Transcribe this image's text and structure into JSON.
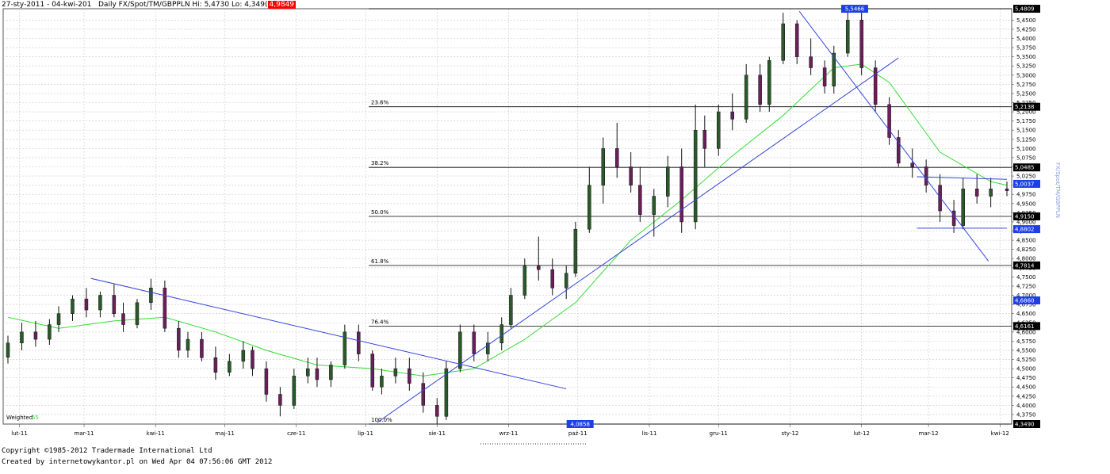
{
  "header": {
    "range": "27-sty-2011 - 04-kwi-201",
    "instrument": "Daily FX/Spot/TM/GBPPLN",
    "hi": "Hi: 5,4730",
    "lo": "Lo: 4,349(",
    "close_box": "4,9849"
  },
  "footer": {
    "copyright": "Copyright ©1985-2012 Tradermade International Ltd",
    "created": "Created by internetowykantor.pl    on Wed Apr 04 07:56:06 GMT 2012"
  },
  "side_title": "FX/Spot/TM/GBPPLN",
  "indicator_label": "Weighted",
  "indicator_period": "55",
  "chart_data": {
    "type": "candlestick",
    "ylim": [
      4.349,
      5.481
    ],
    "y_ticks": [
      {
        "value": 4.375,
        "label": "4,3750"
      },
      {
        "value": 4.4,
        "label": "4,4000"
      },
      {
        "value": 4.425,
        "label": "4,4250"
      },
      {
        "value": 4.45,
        "label": "4,4500"
      },
      {
        "value": 4.475,
        "label": "4,4750"
      },
      {
        "value": 4.5,
        "label": "4,5000"
      },
      {
        "value": 4.525,
        "label": "4,5250"
      },
      {
        "value": 4.55,
        "label": "4,5500"
      },
      {
        "value": 4.575,
        "label": "4,5750"
      },
      {
        "value": 4.6,
        "label": "4,6000"
      },
      {
        "value": 4.625,
        "label": "4,6250"
      },
      {
        "value": 4.65,
        "label": "4,6500"
      },
      {
        "value": 4.675,
        "label": "4,6750"
      },
      {
        "value": 4.7,
        "label": "4,7000"
      },
      {
        "value": 4.725,
        "label": "4,7250"
      },
      {
        "value": 4.75,
        "label": "4,7500"
      },
      {
        "value": 4.775,
        "label": "4,7750"
      },
      {
        "value": 4.8,
        "label": "4,8000"
      },
      {
        "value": 4.825,
        "label": "4,8250"
      },
      {
        "value": 4.85,
        "label": "4,8500"
      },
      {
        "value": 4.875,
        "label": "4,8750"
      },
      {
        "value": 4.9,
        "label": "4,9000"
      },
      {
        "value": 4.925,
        "label": "4,9250"
      },
      {
        "value": 4.95,
        "label": "4,9500"
      },
      {
        "value": 4.975,
        "label": "4,9750"
      },
      {
        "value": 5.0,
        "label": "5,0000"
      },
      {
        "value": 5.025,
        "label": "5,0250"
      },
      {
        "value": 5.05,
        "label": "5,0500"
      },
      {
        "value": 5.075,
        "label": "5,0750"
      },
      {
        "value": 5.1,
        "label": "5,1000"
      },
      {
        "value": 5.125,
        "label": "5,1250"
      },
      {
        "value": 5.15,
        "label": "5,1500"
      },
      {
        "value": 5.175,
        "label": "5,1750"
      },
      {
        "value": 5.2,
        "label": "5,2000"
      },
      {
        "value": 5.225,
        "label": "5,2250"
      },
      {
        "value": 5.25,
        "label": "5,2500"
      },
      {
        "value": 5.275,
        "label": "5,2750"
      },
      {
        "value": 5.3,
        "label": "5,3000"
      },
      {
        "value": 5.325,
        "label": "5,3250"
      },
      {
        "value": 5.35,
        "label": "5,3500"
      },
      {
        "value": 5.375,
        "label": "5,3750"
      },
      {
        "value": 5.4,
        "label": "5,4000"
      },
      {
        "value": 5.425,
        "label": "5,4250"
      },
      {
        "value": 5.45,
        "label": "5,4500"
      }
    ],
    "x_labels": [
      "lut-11",
      "mar-11",
      "kwi-11",
      "maj-11",
      "cze-11",
      "lip-11",
      "sie-11",
      "wrz-11",
      "paź-11",
      "lis-11",
      "gru-11",
      "sty-12",
      "lut-12",
      "mar-12",
      "kwi-12"
    ],
    "x_range": [
      "2011-01-27",
      "2012-04-04"
    ],
    "fibonacci": [
      {
        "label": "23.6%",
        "value": 5.2138
      },
      {
        "label": "38.2%",
        "value": 5.0485
      },
      {
        "label": "50.0%",
        "value": 4.915
      },
      {
        "label": "61.8%",
        "value": 4.7814
      },
      {
        "label": "76.4%",
        "value": 4.6161
      },
      {
        "label": "100.0%",
        "value": 4.349
      }
    ],
    "price_tags": [
      {
        "value": 5.4809,
        "label": "5,4809",
        "color": "#000000"
      },
      {
        "value": 5.2138,
        "label": "5,2138",
        "color": "#000000"
      },
      {
        "value": 5.0485,
        "label": "5,0485",
        "color": "#000000"
      },
      {
        "value": 5.0037,
        "label": "5,0037",
        "color": "#1f3fe6"
      },
      {
        "value": 4.915,
        "label": "4,9150",
        "color": "#000000"
      },
      {
        "value": 4.8802,
        "label": "4,8802",
        "color": "#1f3fe6"
      },
      {
        "value": 4.7814,
        "label": "4,7814",
        "color": "#000000"
      },
      {
        "value": 4.686,
        "label": "4,6860",
        "color": "#1f3fe6"
      },
      {
        "value": 4.6161,
        "label": "4,6161",
        "color": "#000000"
      },
      {
        "value": 4.349,
        "label": "4,3490",
        "color": "#000000"
      }
    ],
    "float_tags": [
      {
        "label": "5,5466",
        "value": 5.4809,
        "date": "2012-01-29"
      },
      {
        "label": "4,0858",
        "value": 4.349,
        "date": "2011-10-02"
      }
    ],
    "trendlines": [
      {
        "from": [
          "2011-03-04",
          4.746
        ],
        "to": [
          "2011-09-26",
          4.445
        ]
      },
      {
        "from": [
          "2011-07-06",
          4.353
        ],
        "to": [
          "2012-02-17",
          5.347
        ]
      },
      {
        "from": [
          "2012-01-05",
          5.474
        ],
        "to": [
          "2012-03-27",
          4.793
        ]
      },
      {
        "from": [
          "2012-02-25",
          5.023
        ],
        "to": [
          "2012-04-04",
          5.016
        ]
      },
      {
        "from": [
          "2012-02-25",
          4.883
        ],
        "to": [
          "2012-04-04",
          4.883
        ]
      }
    ],
    "series": [
      {
        "name": "GBPPLN",
        "kind": "ohlc",
        "points": [
          {
            "date": "2011-01-27",
            "o": 4.531,
            "h": 4.59,
            "l": 4.514,
            "c": 4.57
          },
          {
            "date": "2011-02-02",
            "o": 4.57,
            "h": 4.625,
            "l": 4.55,
            "c": 4.6
          },
          {
            "date": "2011-02-08",
            "o": 4.6,
            "h": 4.63,
            "l": 4.56,
            "c": 4.58
          },
          {
            "date": "2011-02-14",
            "o": 4.58,
            "h": 4.635,
            "l": 4.565,
            "c": 4.62
          },
          {
            "date": "2011-02-18",
            "o": 4.62,
            "h": 4.67,
            "l": 4.6,
            "c": 4.65
          },
          {
            "date": "2011-02-24",
            "o": 4.65,
            "h": 4.7,
            "l": 4.63,
            "c": 4.69
          },
          {
            "date": "2011-03-02",
            "o": 4.69,
            "h": 4.72,
            "l": 4.64,
            "c": 4.66
          },
          {
            "date": "2011-03-08",
            "o": 4.66,
            "h": 4.71,
            "l": 4.64,
            "c": 4.7
          },
          {
            "date": "2011-03-14",
            "o": 4.7,
            "h": 4.73,
            "l": 4.64,
            "c": 4.65
          },
          {
            "date": "2011-03-18",
            "o": 4.65,
            "h": 4.68,
            "l": 4.6,
            "c": 4.62
          },
          {
            "date": "2011-03-24",
            "o": 4.62,
            "h": 4.69,
            "l": 4.61,
            "c": 4.68
          },
          {
            "date": "2011-03-30",
            "o": 4.68,
            "h": 4.745,
            "l": 4.66,
            "c": 4.72
          },
          {
            "date": "2011-04-05",
            "o": 4.72,
            "h": 4.74,
            "l": 4.6,
            "c": 4.61
          },
          {
            "date": "2011-04-11",
            "o": 4.61,
            "h": 4.63,
            "l": 4.53,
            "c": 4.55
          },
          {
            "date": "2011-04-15",
            "o": 4.55,
            "h": 4.6,
            "l": 4.53,
            "c": 4.58
          },
          {
            "date": "2011-04-21",
            "o": 4.58,
            "h": 4.6,
            "l": 4.52,
            "c": 4.53
          },
          {
            "date": "2011-04-27",
            "o": 4.53,
            "h": 4.56,
            "l": 4.47,
            "c": 4.49
          },
          {
            "date": "2011-05-03",
            "o": 4.49,
            "h": 4.54,
            "l": 4.48,
            "c": 4.52
          },
          {
            "date": "2011-05-09",
            "o": 4.52,
            "h": 4.575,
            "l": 4.5,
            "c": 4.55
          },
          {
            "date": "2011-05-13",
            "o": 4.55,
            "h": 4.56,
            "l": 4.48,
            "c": 4.5
          },
          {
            "date": "2011-05-19",
            "o": 4.5,
            "h": 4.52,
            "l": 4.41,
            "c": 4.43
          },
          {
            "date": "2011-05-25",
            "o": 4.43,
            "h": 4.45,
            "l": 4.37,
            "c": 4.4
          },
          {
            "date": "2011-05-31",
            "o": 4.4,
            "h": 4.5,
            "l": 4.39,
            "c": 4.48
          },
          {
            "date": "2011-06-06",
            "o": 4.48,
            "h": 4.53,
            "l": 4.46,
            "c": 4.5
          },
          {
            "date": "2011-06-10",
            "o": 4.5,
            "h": 4.53,
            "l": 4.45,
            "c": 4.47
          },
          {
            "date": "2011-06-16",
            "o": 4.47,
            "h": 4.52,
            "l": 4.45,
            "c": 4.51
          },
          {
            "date": "2011-06-22",
            "o": 4.51,
            "h": 4.62,
            "l": 4.5,
            "c": 4.6
          },
          {
            "date": "2011-06-28",
            "o": 4.6,
            "h": 4.62,
            "l": 4.52,
            "c": 4.54
          },
          {
            "date": "2011-07-04",
            "o": 4.54,
            "h": 4.55,
            "l": 4.44,
            "c": 4.45
          },
          {
            "date": "2011-07-08",
            "o": 4.45,
            "h": 4.5,
            "l": 4.43,
            "c": 4.48
          },
          {
            "date": "2011-07-14",
            "o": 4.48,
            "h": 4.53,
            "l": 4.46,
            "c": 4.5
          },
          {
            "date": "2011-07-20",
            "o": 4.5,
            "h": 4.53,
            "l": 4.44,
            "c": 4.46
          },
          {
            "date": "2011-07-26",
            "o": 4.46,
            "h": 4.49,
            "l": 4.38,
            "c": 4.4
          },
          {
            "date": "2011-08-01",
            "o": 4.4,
            "h": 4.42,
            "l": 4.349,
            "c": 4.37
          },
          {
            "date": "2011-08-05",
            "o": 4.37,
            "h": 4.52,
            "l": 4.36,
            "c": 4.5
          },
          {
            "date": "2011-08-11",
            "o": 4.5,
            "h": 4.62,
            "l": 4.49,
            "c": 4.6
          },
          {
            "date": "2011-08-17",
            "o": 4.6,
            "h": 4.62,
            "l": 4.52,
            "c": 4.54
          },
          {
            "date": "2011-08-23",
            "o": 4.54,
            "h": 4.6,
            "l": 4.52,
            "c": 4.57
          },
          {
            "date": "2011-08-29",
            "o": 4.57,
            "h": 4.64,
            "l": 4.55,
            "c": 4.62
          },
          {
            "date": "2011-09-02",
            "o": 4.62,
            "h": 4.72,
            "l": 4.61,
            "c": 4.7
          },
          {
            "date": "2011-09-08",
            "o": 4.7,
            "h": 4.8,
            "l": 4.69,
            "c": 4.78
          },
          {
            "date": "2011-09-14",
            "o": 4.78,
            "h": 4.86,
            "l": 4.74,
            "c": 4.77
          },
          {
            "date": "2011-09-20",
            "o": 4.77,
            "h": 4.8,
            "l": 4.7,
            "c": 4.72
          },
          {
            "date": "2011-09-26",
            "o": 4.72,
            "h": 4.78,
            "l": 4.69,
            "c": 4.76
          },
          {
            "date": "2011-09-30",
            "o": 4.76,
            "h": 4.9,
            "l": 4.75,
            "c": 4.88
          },
          {
            "date": "2011-10-06",
            "o": 4.88,
            "h": 5.05,
            "l": 4.87,
            "c": 5.0
          },
          {
            "date": "2011-10-12",
            "o": 5.0,
            "h": 5.13,
            "l": 4.95,
            "c": 5.1
          },
          {
            "date": "2011-10-18",
            "o": 5.1,
            "h": 5.17,
            "l": 5.02,
            "c": 5.05
          },
          {
            "date": "2011-10-24",
            "o": 5.05,
            "h": 5.09,
            "l": 4.98,
            "c": 5.0
          },
          {
            "date": "2011-10-28",
            "o": 5.0,
            "h": 5.05,
            "l": 4.9,
            "c": 4.92
          },
          {
            "date": "2011-11-03",
            "o": 4.92,
            "h": 4.99,
            "l": 4.86,
            "c": 4.97
          },
          {
            "date": "2011-11-09",
            "o": 4.97,
            "h": 5.08,
            "l": 4.94,
            "c": 5.05
          },
          {
            "date": "2011-11-15",
            "o": 5.05,
            "h": 5.1,
            "l": 4.87,
            "c": 4.9
          },
          {
            "date": "2011-11-21",
            "o": 4.9,
            "h": 5.22,
            "l": 4.88,
            "c": 5.15
          },
          {
            "date": "2011-11-25",
            "o": 5.15,
            "h": 5.19,
            "l": 5.05,
            "c": 5.1
          },
          {
            "date": "2011-12-01",
            "o": 5.1,
            "h": 5.22,
            "l": 5.08,
            "c": 5.2
          },
          {
            "date": "2011-12-07",
            "o": 5.2,
            "h": 5.25,
            "l": 5.15,
            "c": 5.18
          },
          {
            "date": "2011-12-13",
            "o": 5.18,
            "h": 5.33,
            "l": 5.17,
            "c": 5.3
          },
          {
            "date": "2011-12-19",
            "o": 5.3,
            "h": 5.33,
            "l": 5.2,
            "c": 5.22
          },
          {
            "date": "2011-12-23",
            "o": 5.22,
            "h": 5.35,
            "l": 5.2,
            "c": 5.34
          },
          {
            "date": "2011-12-29",
            "o": 5.34,
            "h": 5.47,
            "l": 5.33,
            "c": 5.44
          },
          {
            "date": "2012-01-04",
            "o": 5.44,
            "h": 5.45,
            "l": 5.33,
            "c": 5.35
          },
          {
            "date": "2012-01-10",
            "o": 5.35,
            "h": 5.4,
            "l": 5.3,
            "c": 5.32
          },
          {
            "date": "2012-01-16",
            "o": 5.32,
            "h": 5.34,
            "l": 5.25,
            "c": 5.27
          },
          {
            "date": "2012-01-20",
            "o": 5.27,
            "h": 5.38,
            "l": 5.25,
            "c": 5.36
          },
          {
            "date": "2012-01-26",
            "o": 5.36,
            "h": 5.473,
            "l": 5.35,
            "c": 5.45
          },
          {
            "date": "2012-02-01",
            "o": 5.45,
            "h": 5.47,
            "l": 5.3,
            "c": 5.32
          },
          {
            "date": "2012-02-07",
            "o": 5.32,
            "h": 5.34,
            "l": 5.2,
            "c": 5.22
          },
          {
            "date": "2012-02-13",
            "o": 5.22,
            "h": 5.24,
            "l": 5.11,
            "c": 5.13
          },
          {
            "date": "2012-02-17",
            "o": 5.13,
            "h": 5.15,
            "l": 5.05,
            "c": 5.06
          },
          {
            "date": "2012-02-23",
            "o": 5.06,
            "h": 5.1,
            "l": 5.02,
            "c": 5.05
          },
          {
            "date": "2012-02-29",
            "o": 5.05,
            "h": 5.07,
            "l": 4.98,
            "c": 5.0
          },
          {
            "date": "2012-03-06",
            "o": 5.0,
            "h": 5.03,
            "l": 4.9,
            "c": 4.93
          },
          {
            "date": "2012-03-12",
            "o": 4.93,
            "h": 4.96,
            "l": 4.87,
            "c": 4.89
          },
          {
            "date": "2012-03-16",
            "o": 4.89,
            "h": 5.02,
            "l": 4.88,
            "c": 4.99
          },
          {
            "date": "2012-03-22",
            "o": 4.99,
            "h": 5.03,
            "l": 4.95,
            "c": 4.97
          },
          {
            "date": "2012-03-28",
            "o": 4.97,
            "h": 5.02,
            "l": 4.94,
            "c": 4.99
          },
          {
            "date": "2012-04-04",
            "o": 4.99,
            "h": 5.01,
            "l": 4.97,
            "c": 4.985
          }
        ]
      },
      {
        "name": "Weighted 55",
        "kind": "line",
        "color": "#33dd33",
        "points": [
          {
            "date": "2011-01-27",
            "v": 4.64
          },
          {
            "date": "2011-02-18",
            "v": 4.61
          },
          {
            "date": "2011-03-14",
            "v": 4.63
          },
          {
            "date": "2011-04-05",
            "v": 4.64
          },
          {
            "date": "2011-04-27",
            "v": 4.6
          },
          {
            "date": "2011-05-19",
            "v": 4.55
          },
          {
            "date": "2011-06-10",
            "v": 4.51
          },
          {
            "date": "2011-07-04",
            "v": 4.5
          },
          {
            "date": "2011-07-26",
            "v": 4.48
          },
          {
            "date": "2011-08-17",
            "v": 4.5
          },
          {
            "date": "2011-09-08",
            "v": 4.58
          },
          {
            "date": "2011-09-30",
            "v": 4.68
          },
          {
            "date": "2011-10-24",
            "v": 4.85
          },
          {
            "date": "2011-11-15",
            "v": 4.96
          },
          {
            "date": "2011-12-07",
            "v": 5.08
          },
          {
            "date": "2011-12-29",
            "v": 5.19
          },
          {
            "date": "2012-01-20",
            "v": 5.32
          },
          {
            "date": "2012-02-01",
            "v": 5.33
          },
          {
            "date": "2012-02-13",
            "v": 5.28
          },
          {
            "date": "2012-03-06",
            "v": 5.09
          },
          {
            "date": "2012-03-28",
            "v": 5.01
          },
          {
            "date": "2012-04-04",
            "v": 5.0
          }
        ]
      }
    ]
  }
}
